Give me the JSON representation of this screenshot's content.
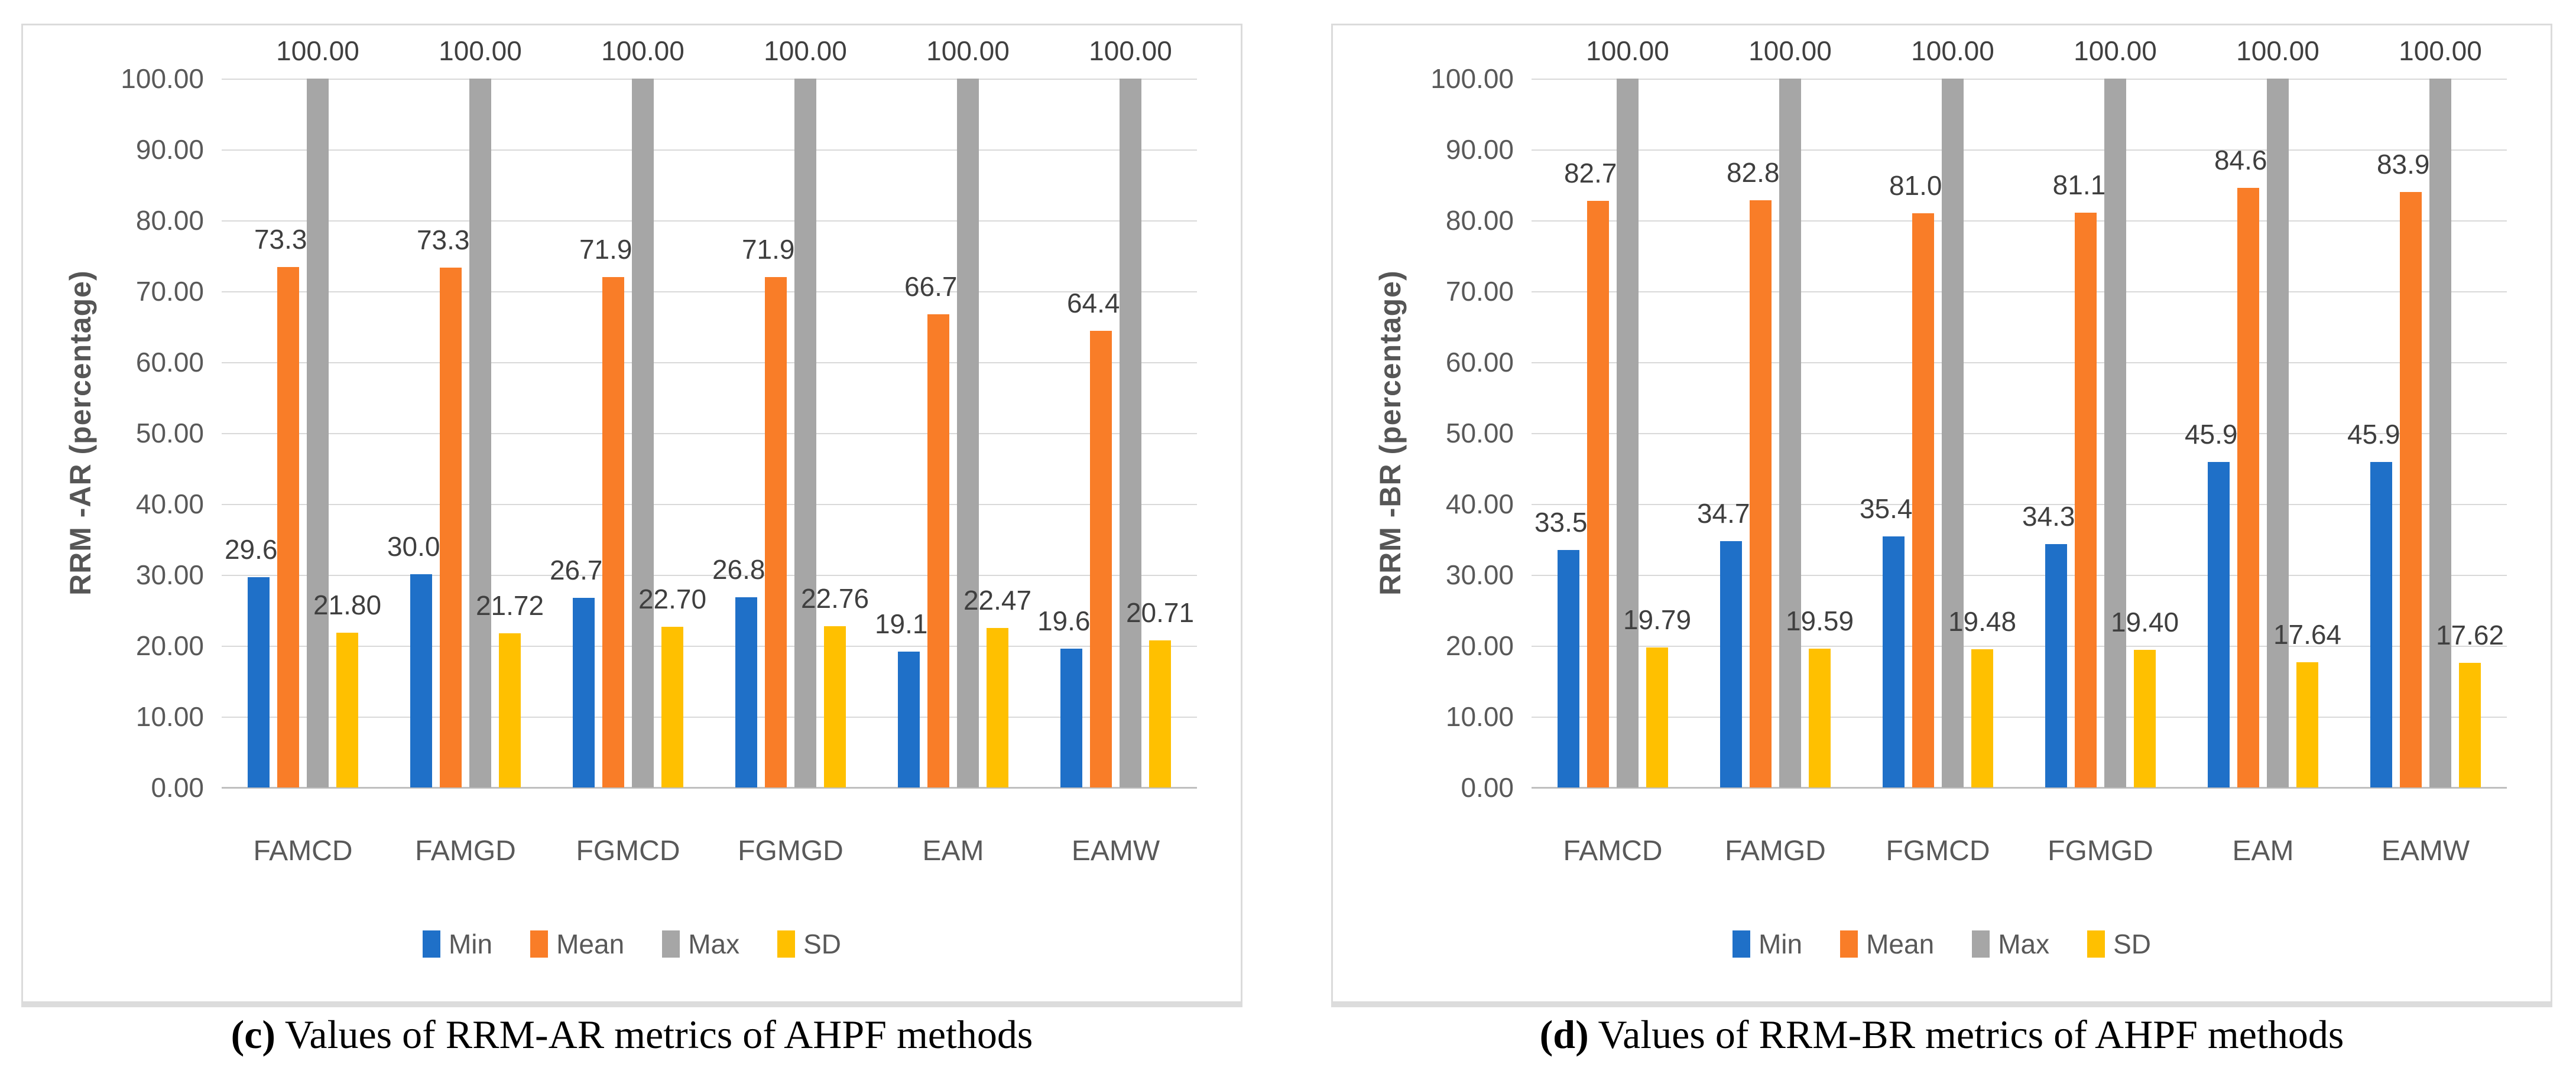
{
  "colors": {
    "min_blue": "#1F70C8",
    "mean_orange": "#F97D28",
    "max_gray": "#A6A6A6",
    "sd_yellow": "#FFC000",
    "gridline": "#D9D9D9",
    "axis_line": "#BFBFBF",
    "tick_text": "#595959",
    "value_label_text": "#3F3F3F",
    "caption_text": "#000000"
  },
  "chart_data": [
    {
      "type": "bar",
      "caption_bold": "(c)",
      "caption_rest": " Values of RRM-AR metrics of AHPF methods",
      "ylabel": "RRM -AR (percentage)",
      "xlabel": "",
      "ylim": [
        0,
        100
      ],
      "ytick_step": 10,
      "ytick_labels": [
        "0.00",
        "10.00",
        "20.00",
        "30.00",
        "40.00",
        "50.00",
        "60.00",
        "70.00",
        "80.00",
        "90.00",
        "100.00"
      ],
      "grid": true,
      "legend_position": "bottom",
      "categories": [
        "FAMCD",
        "FAMGD",
        "FGMCD",
        "FGMGD",
        "EAM",
        "EAMW"
      ],
      "series": [
        {
          "name": "Min",
          "color_key": "min_blue",
          "values": [
            29.67,
            30.07,
            26.71,
            26.86,
            19.19,
            19.61
          ]
        },
        {
          "name": "Mean",
          "color_key": "mean_orange",
          "values": [
            73.39,
            73.31,
            71.97,
            71.97,
            66.74,
            64.41
          ]
        },
        {
          "name": "Max",
          "color_key": "max_gray",
          "values": [
            100.0,
            100.0,
            100.0,
            100.0,
            100.0,
            100.0
          ]
        },
        {
          "name": "SD",
          "color_key": "sd_yellow",
          "values": [
            21.8,
            21.72,
            22.7,
            22.76,
            22.47,
            20.71
          ]
        }
      ]
    },
    {
      "type": "bar",
      "caption_bold": "(d)",
      "caption_rest": " Values of RRM-BR metrics of AHPF methods",
      "ylabel": "RRM -BR (percentage)",
      "xlabel": "",
      "ylim": [
        0,
        100
      ],
      "ytick_step": 10,
      "ytick_labels": [
        "0.00",
        "10.00",
        "20.00",
        "30.00",
        "40.00",
        "50.00",
        "60.00",
        "70.00",
        "80.00",
        "90.00",
        "100.00"
      ],
      "grid": true,
      "legend_position": "bottom",
      "categories": [
        "FAMCD",
        "FAMGD",
        "FGMCD",
        "FGMGD",
        "EAM",
        "EAMW"
      ],
      "series": [
        {
          "name": "Min",
          "color_key": "min_blue",
          "values": [
            33.54,
            34.77,
            35.45,
            34.34,
            45.94,
            45.94
          ]
        },
        {
          "name": "Mean",
          "color_key": "mean_orange",
          "values": [
            82.73,
            82.85,
            81.03,
            81.11,
            84.6,
            83.96
          ]
        },
        {
          "name": "Max",
          "color_key": "max_gray",
          "values": [
            100.0,
            100.0,
            100.0,
            100.0,
            100.0,
            100.0
          ]
        },
        {
          "name": "SD",
          "color_key": "sd_yellow",
          "values": [
            19.79,
            19.59,
            19.48,
            19.4,
            17.64,
            17.62
          ]
        }
      ]
    }
  ]
}
